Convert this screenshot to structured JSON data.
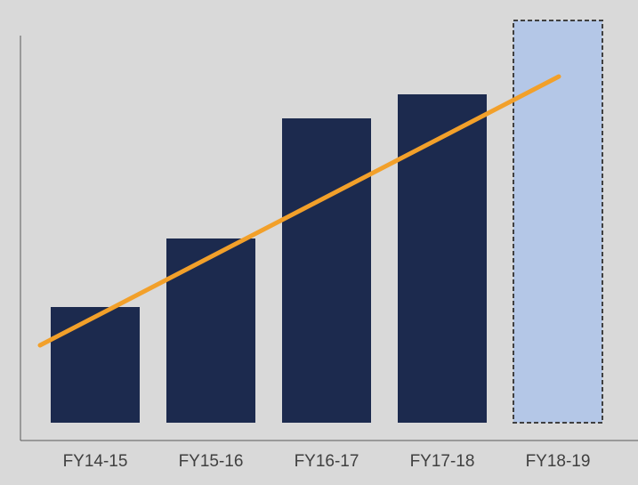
{
  "chart_data": {
    "type": "bar",
    "categories": [
      "FY14-15",
      "FY15-16",
      "FY16-17",
      "FY17-18",
      "FY18-19"
    ],
    "values": [
      130,
      207,
      342,
      369,
      452
    ],
    "projected": [
      false,
      false,
      false,
      false,
      true
    ],
    "trendline": {
      "start": 87,
      "end": 389
    },
    "ylim": [
      0,
      435
    ],
    "title": "",
    "xlabel": "",
    "ylabel": "",
    "grid": false,
    "legend": "none",
    "colors": {
      "background": "#d9d9d9",
      "bar": "#1c2a4e",
      "projected_bar": "#b4c7e7",
      "projected_border": "#404040",
      "trend": "#f2a02a",
      "axis": "#595959",
      "label": "#404040"
    }
  }
}
